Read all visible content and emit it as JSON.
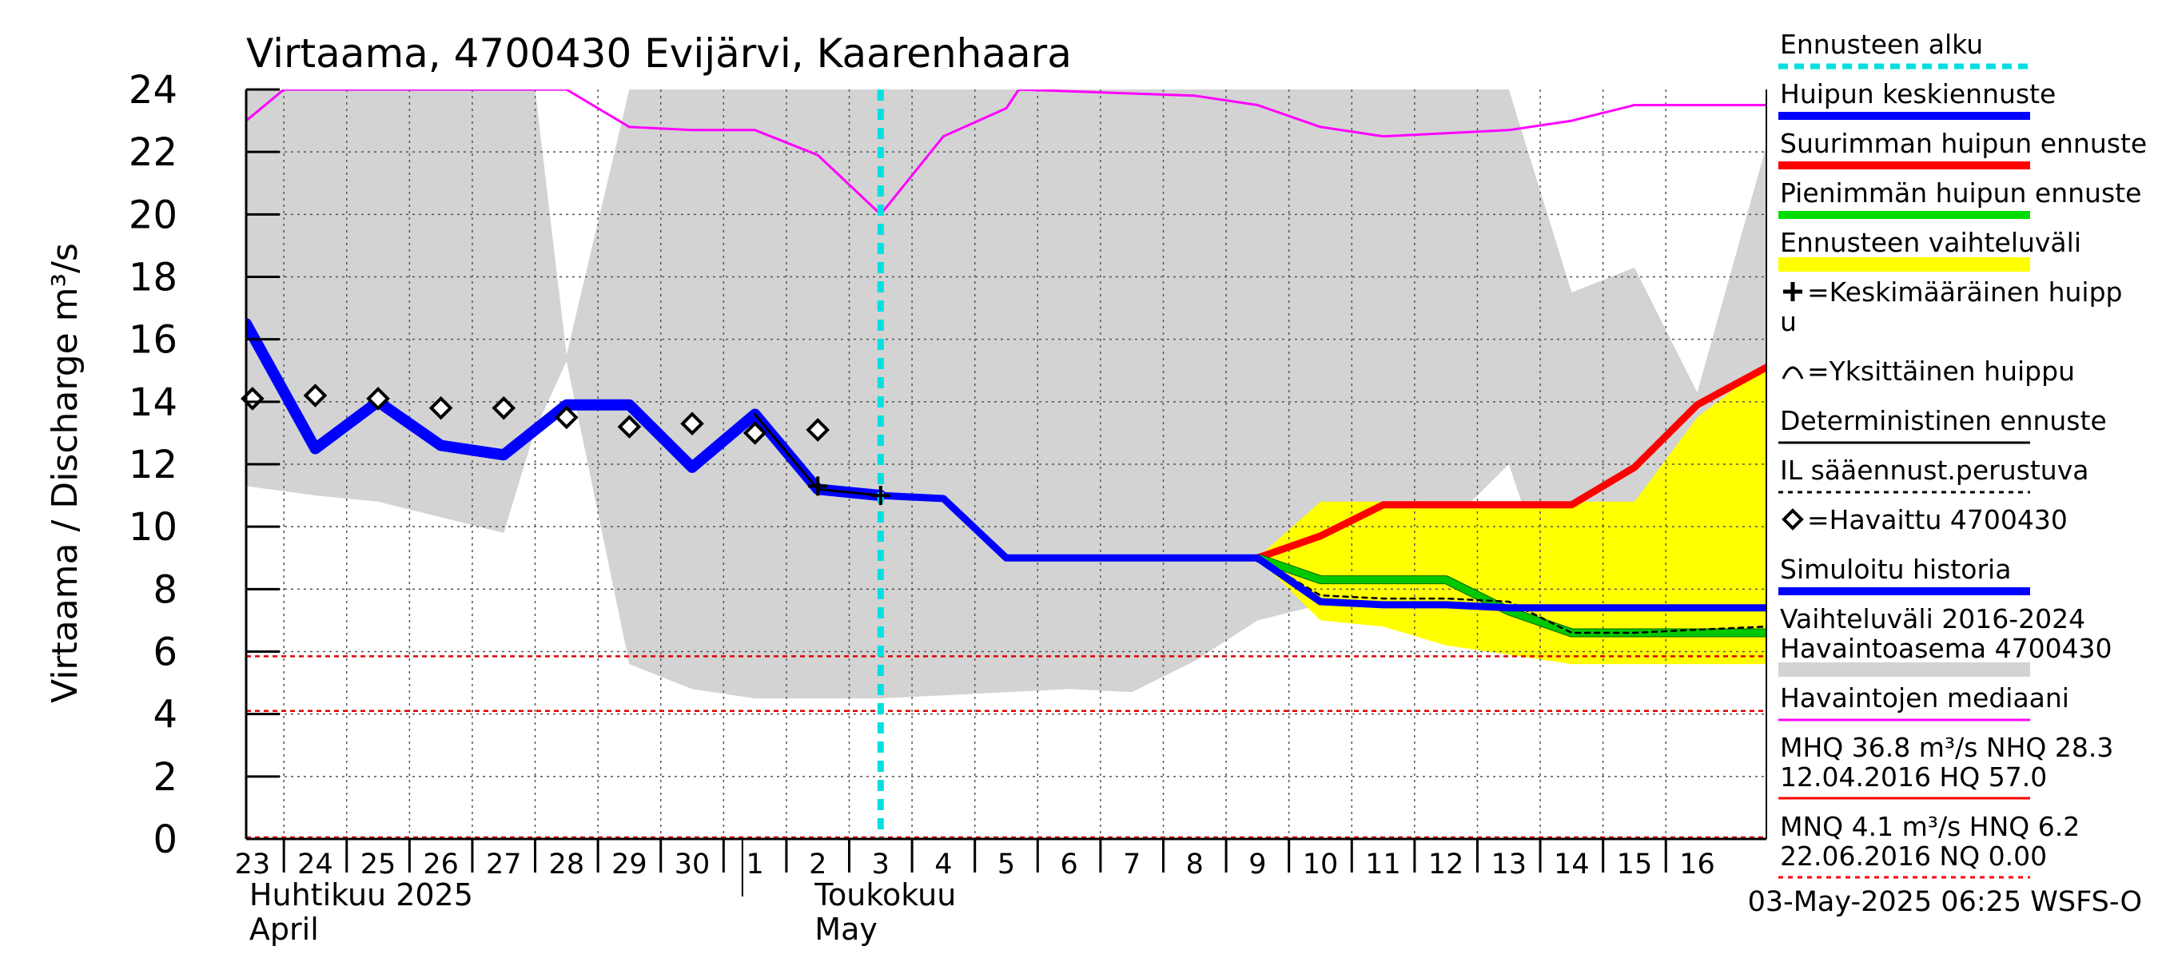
{
  "chart_data": {
    "type": "line",
    "title": "Virtaama, 4700430 Evijärvi, Kaarenhaara",
    "ylabel": "Virtaama / Discharge    m³/s",
    "ylim": [
      0,
      24
    ],
    "yticks": [
      "0",
      "2",
      "4",
      "6",
      "8",
      "10",
      "12",
      "14",
      "16",
      "18",
      "20",
      "22",
      "24"
    ],
    "x_range": [
      -0.1,
      24.1
    ],
    "x_ticks": [
      {
        "label": "23",
        "x": 0
      },
      {
        "label": "24",
        "x": 1
      },
      {
        "label": "25",
        "x": 2
      },
      {
        "label": "26",
        "x": 3
      },
      {
        "label": "27",
        "x": 4
      },
      {
        "label": "28",
        "x": 5
      },
      {
        "label": "29",
        "x": 6
      },
      {
        "label": "30",
        "x": 7
      },
      {
        "label": "1",
        "x": 8
      },
      {
        "label": "2",
        "x": 9
      },
      {
        "label": "3",
        "x": 10
      },
      {
        "label": "4",
        "x": 11
      },
      {
        "label": "5",
        "x": 12
      },
      {
        "label": "6",
        "x": 13
      },
      {
        "label": "7",
        "x": 14
      },
      {
        "label": "8",
        "x": 15
      },
      {
        "label": "9",
        "x": 16
      },
      {
        "label": "10",
        "x": 17
      },
      {
        "label": "11",
        "x": 18
      },
      {
        "label": "12",
        "x": 19
      },
      {
        "label": "13",
        "x": 20
      },
      {
        "label": "14",
        "x": 21
      },
      {
        "label": "15",
        "x": 22
      },
      {
        "label": "16",
        "x": 23
      }
    ],
    "month_labels": [
      {
        "line1": "Huhtikuu  2025",
        "line2": "April",
        "x": 0
      },
      {
        "line1": "Toukokuu",
        "line2": "May",
        "x": 9
      }
    ],
    "month_boundary_x": 7.8,
    "forecast_start_x": 10.0,
    "reference_lines": [
      5.85,
      4.1,
      0.05
    ],
    "variation_band": {
      "name": "Vaihteluväli 2016-2024",
      "x": [
        -0.1,
        1,
        2,
        3,
        4,
        4.5,
        5,
        6,
        7,
        8,
        9,
        10,
        11,
        12,
        13,
        14,
        15,
        16,
        17,
        18,
        19,
        20,
        21,
        22,
        23,
        24.1
      ],
      "upper": [
        24,
        24,
        24,
        24,
        24,
        24,
        15.5,
        24,
        24,
        24,
        24,
        24,
        24,
        24,
        24,
        24,
        24,
        24,
        24,
        24,
        24,
        24,
        17.5,
        18.3,
        14.3,
        22.2
      ],
      "lower": [
        11.3,
        11.0,
        10.8,
        10.3,
        9.8,
        13.1,
        15.3,
        5.6,
        4.8,
        4.5,
        4.5,
        4.5,
        4.6,
        4.7,
        4.8,
        4.7,
        5.7,
        7.0,
        7.5,
        7.8,
        10.0,
        12.0,
        6.0,
        6.0,
        6.0,
        6.0
      ]
    },
    "forecast_range": {
      "name": "Ennusteen vaihteluväli",
      "x": [
        16,
        17,
        18,
        19,
        20,
        21,
        22,
        23,
        24.1
      ],
      "upper": [
        9.0,
        10.8,
        10.8,
        10.8,
        10.8,
        10.8,
        10.8,
        13.5,
        15.2
      ],
      "lower": [
        9.0,
        7.0,
        6.8,
        6.2,
        5.9,
        5.6,
        5.6,
        5.6,
        5.6
      ]
    },
    "series": [
      {
        "name": "Havaintojen mediaani",
        "color": "#ff00ff",
        "x": [
          -0.1,
          0.5,
          5,
          6,
          7,
          8,
          9,
          10,
          11,
          12,
          12.2,
          15,
          16,
          17,
          18,
          19,
          20,
          21,
          22,
          23,
          24.1
        ],
        "y": [
          23.0,
          24.0,
          24.0,
          22.8,
          22.7,
          22.7,
          21.9,
          20.0,
          22.5,
          23.4,
          24.0,
          23.8,
          23.5,
          22.8,
          22.5,
          22.6,
          22.7,
          23.0,
          23.5,
          23.5,
          23.5
        ]
      },
      {
        "name": "Simuloitu historia",
        "color": "#0000ff",
        "x": [
          -0.1,
          1,
          2,
          3,
          4,
          5,
          6,
          7,
          8,
          9,
          10
        ],
        "y": [
          16.5,
          12.5,
          14.0,
          12.6,
          12.3,
          13.9,
          13.9,
          11.9,
          13.6,
          11.2,
          11.0
        ]
      },
      {
        "name": "Deterministinen ennuste",
        "color": "#000000",
        "x": [
          8,
          9,
          10,
          11,
          12,
          13,
          14,
          15,
          16
        ],
        "y": [
          13.6,
          11.2,
          11.0,
          10.9,
          9.0,
          9.0,
          9.0,
          9.0,
          9.0
        ]
      },
      {
        "name": "Suurimman huipun ennuste",
        "color": "#ff0000",
        "x": [
          16,
          17,
          18,
          19,
          20,
          21,
          22,
          23,
          24.1
        ],
        "y": [
          9.0,
          9.7,
          10.7,
          10.7,
          10.7,
          10.7,
          11.9,
          13.9,
          15.1
        ]
      },
      {
        "name": "Pienimmän huipun ennuste",
        "color": "#00c800",
        "x": [
          16,
          17,
          18,
          19,
          20,
          21,
          22,
          23,
          24.1
        ],
        "y": [
          9.0,
          8.3,
          8.3,
          8.3,
          7.3,
          6.6,
          6.6,
          6.6,
          6.6
        ]
      },
      {
        "name": "IL sääennust.perustuva",
        "color": "#000000",
        "x": [
          16,
          17,
          18,
          19,
          20,
          21,
          22,
          23,
          24.1
        ],
        "y": [
          9.0,
          7.8,
          7.7,
          7.7,
          7.6,
          6.6,
          6.6,
          6.7,
          6.8
        ]
      },
      {
        "name": "Huipun keskiennuste",
        "color": "#0000ff",
        "x": [
          10,
          11,
          12,
          13,
          14,
          15,
          16,
          17,
          18,
          19,
          20,
          21,
          22,
          23,
          24.1
        ],
        "y": [
          11.0,
          10.9,
          9.0,
          9.0,
          9.0,
          9.0,
          9.0,
          7.6,
          7.5,
          7.5,
          7.4,
          7.4,
          7.4,
          7.4,
          7.4
        ]
      }
    ],
    "observed": {
      "name": "Havaittu 4700430",
      "x": [
        0,
        1,
        2,
        3,
        4,
        5,
        6,
        7,
        8,
        9
      ],
      "y": [
        14.1,
        14.2,
        14.1,
        13.8,
        13.8,
        13.5,
        13.2,
        13.3,
        13.0,
        13.1
      ]
    },
    "mean_peaks": {
      "name": "Keskimääräinen huippu",
      "x": [
        9,
        10
      ],
      "y": [
        11.3,
        11.0
      ]
    },
    "legend": [
      {
        "label": "Ennusteen alku",
        "style": "dash",
        "color": "#00e0e0"
      },
      {
        "label": "Huipun keskiennuste",
        "style": "thick",
        "color": "#0000ff"
      },
      {
        "label": "Suurimman huipun ennuste",
        "style": "thick",
        "color": "#ff0000"
      },
      {
        "label": "Pienimmän huipun ennuste",
        "style": "thick",
        "color": "#00dd00"
      },
      {
        "label": "Ennusteen vaihteluväli",
        "style": "band",
        "color": "#ffff00"
      },
      {
        "label": "=Keskimääräinen huipp",
        "label2": "u",
        "style": "plus",
        "color": "#000000"
      },
      {
        "label": "=Yksittäinen huippu",
        "style": "arc",
        "color": "#000000"
      },
      {
        "label": "Deterministinen ennuste",
        "style": "thin",
        "color": "#000000"
      },
      {
        "label": "IL sääennust.perustuva",
        "style": "dot",
        "color": "#000000"
      },
      {
        "label": "=Havaittu 4700430",
        "style": "diamond",
        "color": "#000000"
      },
      {
        "label": "Simuloitu historia",
        "style": "thick",
        "color": "#0000ff"
      },
      {
        "label": "Vaihteluväli 2016-2024",
        "label2": " Havaintoasema 4700430",
        "style": "band",
        "color": "#d3d3d3"
      },
      {
        "label": "Havaintojen mediaani",
        "style": "thin",
        "color": "#ff00ff"
      },
      {
        "label": "MHQ 36.8 m³/s NHQ 28.3",
        "label2": "12.04.2016 HQ 57.0",
        "style": "thin",
        "color": "#ff0000"
      },
      {
        "label": "MNQ  4.1 m³/s HNQ  6.2",
        "label2": "22.06.2016 NQ 0.00",
        "style": "dot",
        "color": "#ff0000"
      }
    ],
    "footer": "03-May-2025 06:25 WSFS-O"
  }
}
